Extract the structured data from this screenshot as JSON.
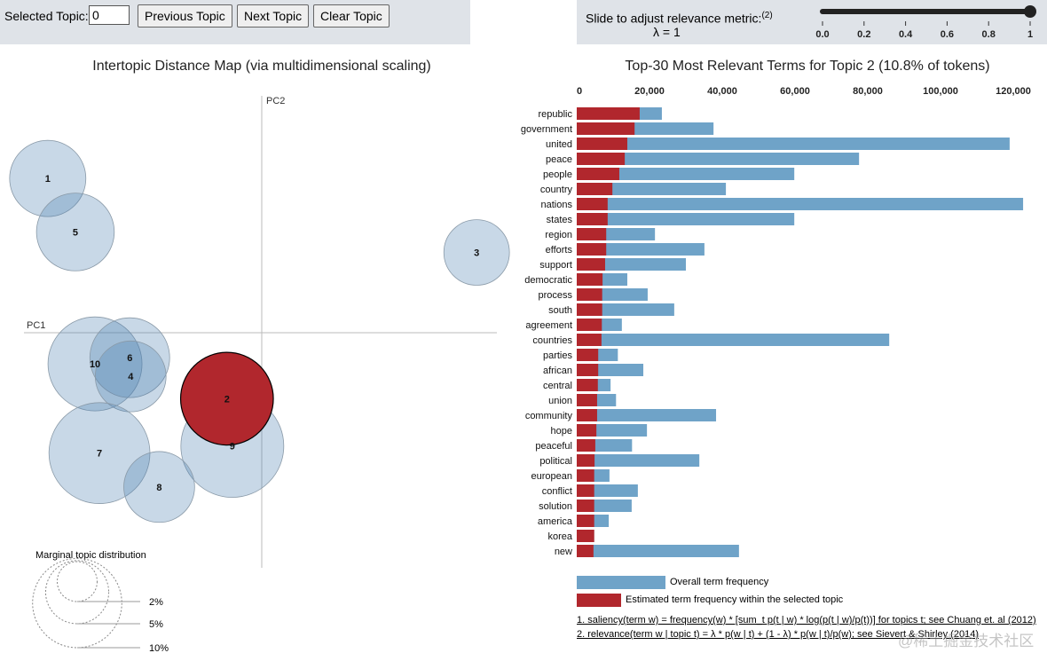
{
  "controls": {
    "selected_topic_label": "Selected Topic:",
    "selected_topic_value": "0",
    "previous_label": "Previous Topic",
    "next_label": "Next Topic",
    "clear_label": "Clear Topic"
  },
  "slider": {
    "label": "Slide to adjust relevance metric:",
    "footnote_ref": "(2)",
    "lambda_text": "λ = 1",
    "value": 1,
    "min": 0,
    "max": 1,
    "ticks": [
      "0.0",
      "0.2",
      "0.4",
      "0.6",
      "0.8",
      "1"
    ]
  },
  "colors": {
    "overall": "#6fa3c8",
    "topic": "#b1272d",
    "bubble": "#a9c1d6",
    "bubble_selected": "#b1272d"
  },
  "chart_data": [
    {
      "type": "scatter",
      "title": "Intertopic Distance Map (via multidimensional scaling)",
      "xlabel": "PC1",
      "ylabel": "PC2",
      "selected_topic": 2,
      "topics": [
        {
          "id": 1,
          "pc1": -0.24,
          "pc2": 0.173,
          "size_pct": 7.3
        },
        {
          "id": 5,
          "pc1": -0.209,
          "pc2": 0.113,
          "size_pct": 7.6
        },
        {
          "id": 3,
          "pc1": 0.241,
          "pc2": 0.09,
          "size_pct": 5.4
        },
        {
          "id": 10,
          "pc1": -0.187,
          "pc2": -0.035,
          "size_pct": 11.1
        },
        {
          "id": 6,
          "pc1": -0.148,
          "pc2": -0.028,
          "size_pct": 8.0
        },
        {
          "id": 4,
          "pc1": -0.147,
          "pc2": -0.049,
          "size_pct": 6.3
        },
        {
          "id": 2,
          "pc1": -0.039,
          "pc2": -0.074,
          "size_pct": 10.8
        },
        {
          "id": 9,
          "pc1": -0.033,
          "pc2": -0.127,
          "size_pct": 13.3
        },
        {
          "id": 7,
          "pc1": -0.182,
          "pc2": -0.135,
          "size_pct": 12.8
        },
        {
          "id": 8,
          "pc1": -0.115,
          "pc2": -0.173,
          "size_pct": 6.3
        }
      ],
      "marginal_legend": {
        "title": "Marginal topic distribution",
        "levels": [
          {
            "label": "2%",
            "value": 2
          },
          {
            "label": "5%",
            "value": 5
          },
          {
            "label": "10%",
            "value": 10
          }
        ]
      }
    },
    {
      "type": "bar",
      "orientation": "horizontal",
      "title": "Top-30 Most Relevant Terms for Topic 2 (10.8% of tokens)",
      "xlim": [
        0,
        125000
      ],
      "xticks": [
        "0",
        "20,000",
        "40,000",
        "60,000",
        "80,000",
        "100,000",
        "120,000"
      ],
      "xtick_values": [
        0,
        20000,
        40000,
        60000,
        80000,
        100000,
        120000
      ],
      "categories": [
        "republic",
        "government",
        "united",
        "peace",
        "people",
        "country",
        "nations",
        "states",
        "region",
        "efforts",
        "support",
        "democratic",
        "process",
        "south",
        "agreement",
        "countries",
        "parties",
        "african",
        "central",
        "union",
        "community",
        "hope",
        "peaceful",
        "political",
        "european",
        "conflict",
        "solution",
        "america",
        "korea",
        "new"
      ],
      "series": [
        {
          "name": "Overall term frequency",
          "values": [
            23400,
            37600,
            119000,
            77600,
            59800,
            41000,
            122700,
            59800,
            21500,
            35100,
            30000,
            13900,
            19500,
            26800,
            12400,
            85900,
            11300,
            18300,
            9300,
            10800,
            38300,
            19300,
            15200,
            33700,
            9000,
            16800,
            15100,
            8800,
            4800,
            44600
          ]
        },
        {
          "name": "Estimated term frequency within the selected topic",
          "values": [
            17300,
            15900,
            13900,
            13200,
            11700,
            9800,
            8500,
            8500,
            8100,
            8100,
            7800,
            7100,
            7000,
            7000,
            6900,
            6800,
            5900,
            5900,
            5800,
            5600,
            5600,
            5400,
            5100,
            4900,
            4800,
            4800,
            4800,
            4800,
            4800,
            4600
          ]
        }
      ],
      "legend": {
        "overall": "Overall term frequency",
        "topic": "Estimated term frequency within the selected topic"
      }
    }
  ],
  "footnotes": [
    "1. saliency(term w) = frequency(w) * [sum_t p(t | w) * log(p(t | w)/p(t))] for topics t; see Chuang et. al (2012)",
    "2. relevance(term w | topic t) = λ * p(w | t) + (1 - λ) * p(w | t)/p(w); see Sievert & Shirley (2014)"
  ],
  "watermark": "@稀土掘金技术社区"
}
